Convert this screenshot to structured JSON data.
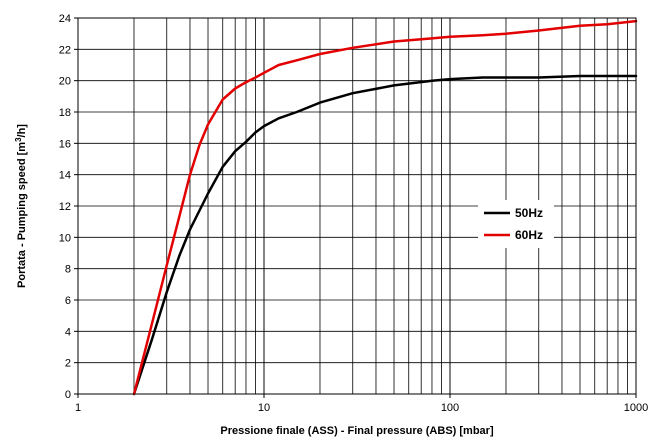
{
  "chart_data": {
    "type": "line",
    "xlabel": "Pressione finale (ASS) - Final pressure (ABS) [mbar]",
    "ylabel_parts": {
      "before": "Portata - Pumping speed [m",
      "sup": "3",
      "after": "/h]"
    },
    "x_scale": "log",
    "xlim": [
      1,
      1000
    ],
    "ylim": [
      0,
      24
    ],
    "x_ticks": [
      1,
      10,
      100,
      1000
    ],
    "x_tick_labels": [
      "1",
      "10",
      "100",
      "1000"
    ],
    "y_ticks": [
      0,
      2,
      4,
      6,
      8,
      10,
      12,
      14,
      16,
      18,
      20,
      22,
      24
    ],
    "grid": true,
    "legend_position": "right",
    "series": [
      {
        "name": "50Hz",
        "color": "#000000",
        "x": [
          2,
          2.5,
          3,
          3.5,
          4,
          5,
          6,
          7,
          8,
          9,
          10,
          12,
          15,
          20,
          30,
          50,
          80,
          100,
          150,
          200,
          300,
          500,
          700,
          1000
        ],
        "y": [
          0,
          3.5,
          6.5,
          8.8,
          10.5,
          12.8,
          14.5,
          15.5,
          16.1,
          16.7,
          17.1,
          17.6,
          18.0,
          18.6,
          19.2,
          19.7,
          20.0,
          20.1,
          20.2,
          20.2,
          20.2,
          20.3,
          20.3,
          20.3
        ]
      },
      {
        "name": "60Hz",
        "color": "#e30000",
        "x": [
          2,
          2.5,
          3,
          3.5,
          4,
          4.5,
          5,
          6,
          7,
          8,
          9,
          10,
          12,
          15,
          20,
          30,
          50,
          80,
          100,
          150,
          200,
          300,
          500,
          700,
          1000
        ],
        "y": [
          0,
          4.5,
          8.2,
          11.3,
          14.0,
          15.9,
          17.2,
          18.8,
          19.5,
          19.9,
          20.2,
          20.5,
          21.0,
          21.3,
          21.7,
          22.1,
          22.5,
          22.7,
          22.8,
          22.9,
          23.0,
          23.2,
          23.5,
          23.6,
          23.8
        ]
      }
    ]
  }
}
